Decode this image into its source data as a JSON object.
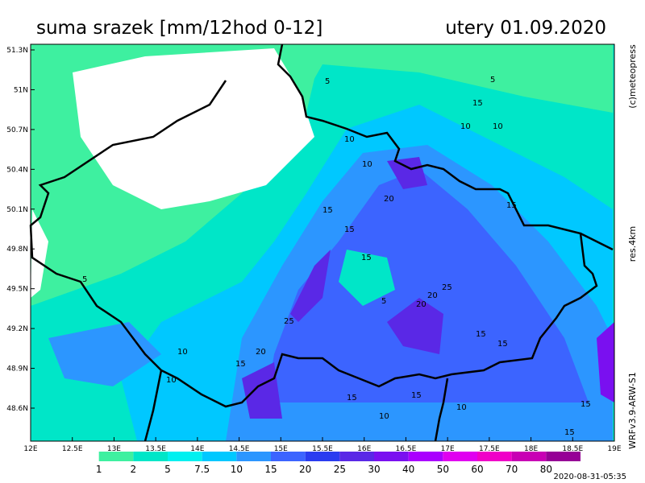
{
  "header": {
    "title": "suma srazek [mm/12hod 0-12]",
    "date": "utery 01.09.2020"
  },
  "side": {
    "credit": "(c)meteopress",
    "resolution": "res.4km",
    "model": "WRFv3.9-ARW-S1"
  },
  "map": {
    "lon_ticks": [
      "12E",
      "12.5E",
      "13E",
      "13.5E",
      "14E",
      "14.5E",
      "15E",
      "15.5E",
      "16E",
      "16.5E",
      "17E",
      "17.5E",
      "18E",
      "18.5E",
      "19E"
    ],
    "lat_ticks": [
      "51.3N",
      "51N",
      "50.7N",
      "50.4N",
      "50.1N",
      "49.8N",
      "49.5N",
      "49.2N",
      "48.9N",
      "48.6N"
    ],
    "contour_labels": [
      "5",
      "5",
      "15",
      "10",
      "10",
      "10",
      "15",
      "10",
      "15",
      "15",
      "20",
      "15",
      "5",
      "20",
      "25",
      "15",
      "20",
      "25",
      "15",
      "15",
      "20",
      "15",
      "10",
      "15",
      "10",
      "10",
      "15",
      "10",
      "15",
      "5"
    ]
  },
  "legend": {
    "colors": [
      "#ffffff",
      "#3ef0a0",
      "#00e6c8",
      "#00f0f0",
      "#00c8ff",
      "#2c96ff",
      "#3c64ff",
      "#2a3cf0",
      "#5a28e6",
      "#7a10f0",
      "#aa00ff",
      "#e000f0",
      "#f000c8",
      "#c800b4",
      "#960096"
    ],
    "labels": [
      "1",
      "2",
      "5",
      "7.5",
      "10",
      "15",
      "20",
      "25",
      "30",
      "40",
      "50",
      "60",
      "70",
      "80"
    ]
  },
  "footer": {
    "timestamp": "2020-08-31-05:35"
  }
}
